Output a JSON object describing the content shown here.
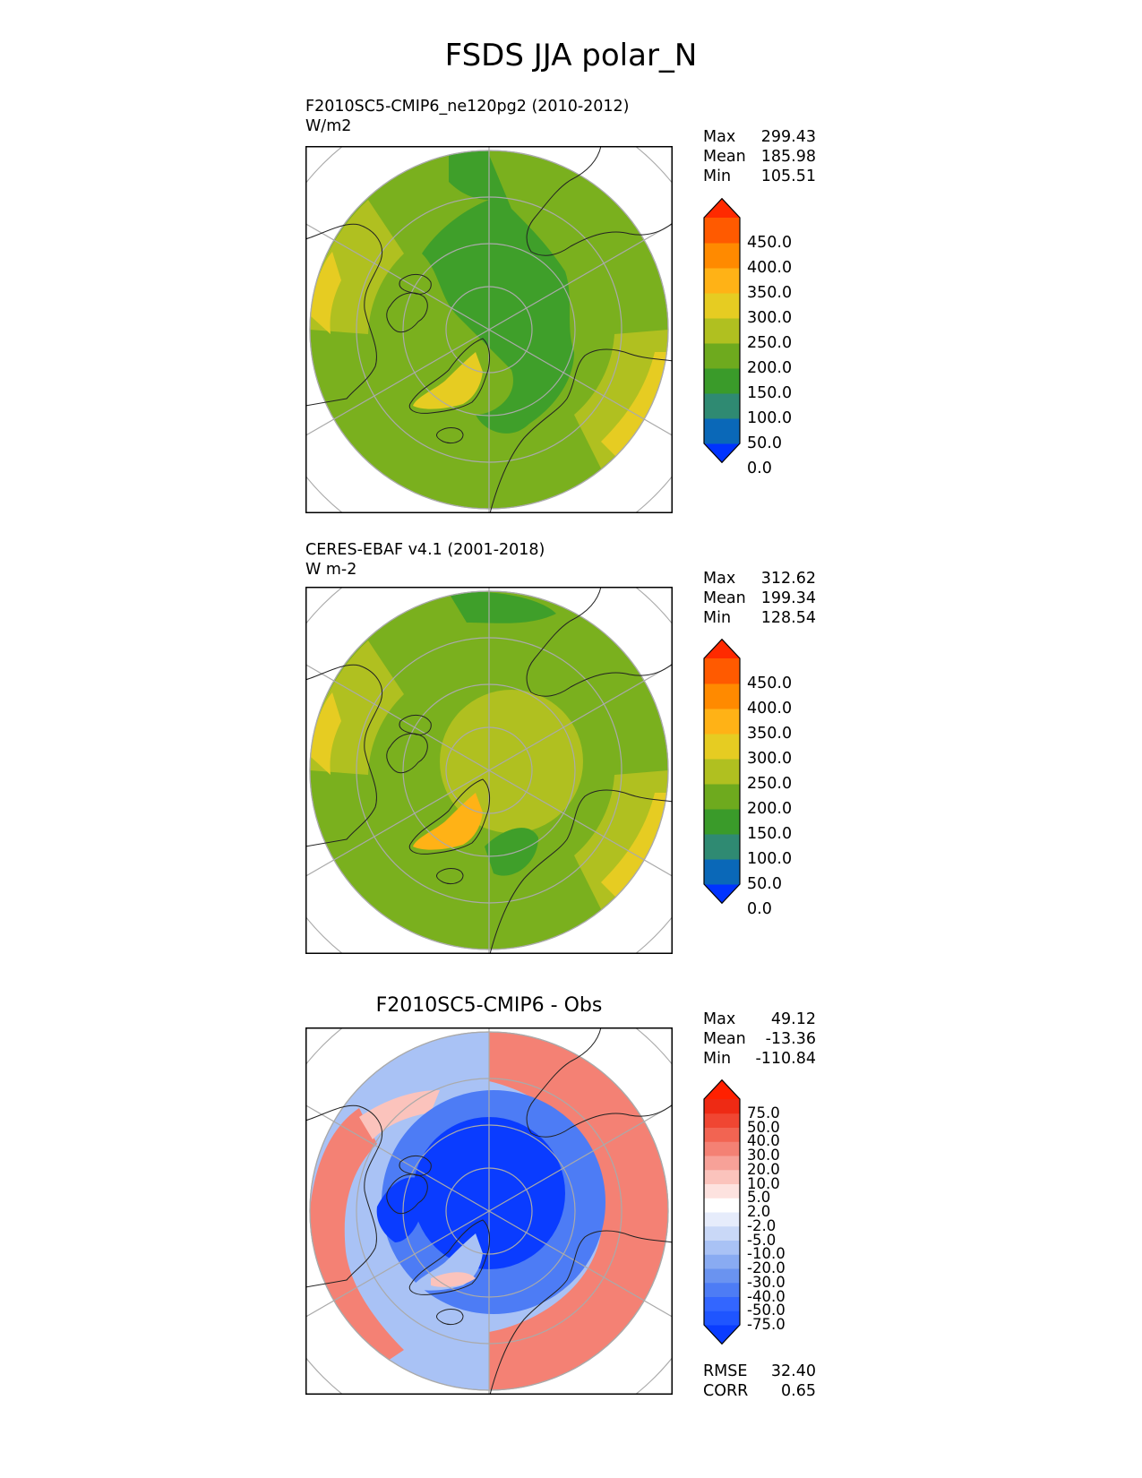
{
  "figure_title": "FSDS JJA polar_N",
  "panels": [
    {
      "title_line1": "F2010SC5-CMIP6_ne120pg2 (2010-2012)",
      "title_line2": "W/m2",
      "stats": {
        "max_label": "Max",
        "max": "299.43",
        "mean_label": "Mean",
        "mean": "185.98",
        "min_label": "Min",
        "min": "105.51"
      }
    },
    {
      "title_line1": "CERES-EBAF v4.1 (2001-2018)",
      "title_line2": "W m-2",
      "stats": {
        "max_label": "Max",
        "max": "312.62",
        "mean_label": "Mean",
        "mean": "199.34",
        "min_label": "Min",
        "min": "128.54"
      }
    },
    {
      "title": "F2010SC5-CMIP6 - Obs",
      "stats": {
        "max_label": "Max",
        "max": "49.12",
        "mean_label": "Mean",
        "mean": "-13.36",
        "min_label": "Min",
        "min": "-110.84"
      },
      "metrics": {
        "rmse_label": "RMSE",
        "rmse": "32.40",
        "corr_label": "CORR",
        "corr": "0.65"
      }
    }
  ],
  "colorbar_field": {
    "labels": [
      "450.0",
      "400.0",
      "350.0",
      "300.0",
      "250.0",
      "200.0",
      "150.0",
      "100.0",
      "50.0",
      "0.0"
    ],
    "colors": [
      "#0033ff",
      "#0a68b8",
      "#2f8a72",
      "#3a9b2a",
      "#6eaa1e",
      "#b0c020",
      "#e6cc22",
      "#ffb216",
      "#ff8a00",
      "#ff5a00",
      "#ff2a00"
    ]
  },
  "colorbar_diff": {
    "labels": [
      "75.0",
      "50.0",
      "40.0",
      "30.0",
      "20.0",
      "10.0",
      "5.0",
      "2.0",
      "-2.0",
      "-5.0",
      "-10.0",
      "-20.0",
      "-30.0",
      "-40.0",
      "-50.0",
      "-75.0"
    ],
    "colors": [
      "#0a3cff",
      "#1f55ff",
      "#3366ff",
      "#4d7cf5",
      "#6a93f0",
      "#89abf2",
      "#a9c2f5",
      "#c9d8f7",
      "#e6ecfb",
      "#ffffff",
      "#fde2df",
      "#fbc3bc",
      "#f7a198",
      "#f48174",
      "#f26452",
      "#f04632",
      "#ee2a14",
      "#ff2000"
    ]
  },
  "map_colors": {
    "field_base": "#7ab01e",
    "model_green": "#3f9f2a",
    "yellow": "#e6cc22",
    "olive": "#b0c020",
    "orange": "#ffb216",
    "diff_deep_blue": "#0a3cff",
    "diff_blue": "#4d7cf5",
    "diff_light_blue": "#a9c2f5",
    "diff_red": "#f48174",
    "diff_light_red": "#fbc3bc"
  }
}
